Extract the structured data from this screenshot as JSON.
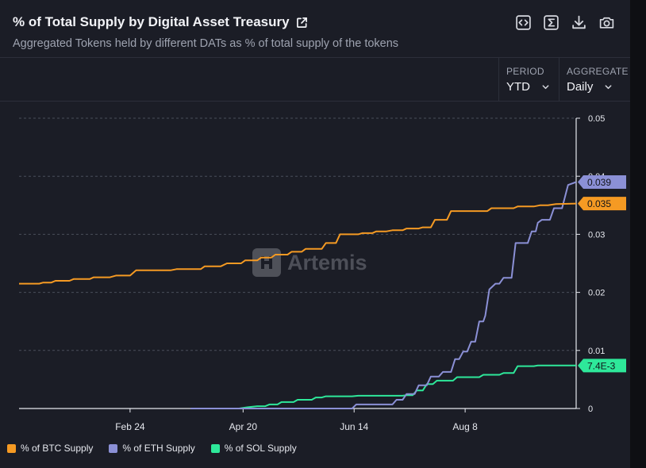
{
  "header": {
    "title": "% of Total Supply by Digital Asset Treasury",
    "subtitle": "Aggregated Tokens held by different DATs as % of total supply of the tokens"
  },
  "toolbar": {
    "embed_icon": "code-icon",
    "sum_icon": "sigma-icon",
    "download_icon": "download-icon",
    "screenshot_icon": "camera-icon"
  },
  "controls": {
    "period": {
      "label": "PERIOD",
      "value": "YTD"
    },
    "aggregate": {
      "label": "AGGREGATE",
      "value": "Daily"
    }
  },
  "watermark": "Artemis",
  "colors": {
    "background": "#1b1d26",
    "btc": "#f59a23",
    "eth": "#8b90d6",
    "sol": "#2ee89a",
    "grid": "#4a4e5a",
    "text": "#e6e8ee"
  },
  "chart_data": {
    "type": "line",
    "title": "% of Total Supply by Digital Asset Treasury",
    "xlabel": "",
    "ylabel": "",
    "x_ticks": [
      "Feb 24",
      "Apr 20",
      "Jun 14",
      "Aug 8"
    ],
    "x_tick_day": [
      55,
      111,
      166,
      221
    ],
    "y_ticks": [
      "0",
      "0.01",
      "0.02",
      "0.03",
      "0.04",
      "0.05"
    ],
    "ylim": [
      0,
      0.05
    ],
    "x_range_days": [
      0,
      276
    ],
    "grid": "horizontal-dashed",
    "legend_position": "bottom-left",
    "series": [
      {
        "name": "% of BTC Supply",
        "color": "#f59a23",
        "last_label": "0.035",
        "points": [
          [
            0,
            0.0215
          ],
          [
            10,
            0.0215
          ],
          [
            12,
            0.0217
          ],
          [
            16,
            0.0217
          ],
          [
            18,
            0.022
          ],
          [
            25,
            0.022
          ],
          [
            27,
            0.0223
          ],
          [
            35,
            0.0223
          ],
          [
            37,
            0.0226
          ],
          [
            45,
            0.0226
          ],
          [
            48,
            0.0229
          ],
          [
            55,
            0.0229
          ],
          [
            58,
            0.0238
          ],
          [
            75,
            0.0238
          ],
          [
            78,
            0.024
          ],
          [
            90,
            0.024
          ],
          [
            92,
            0.0245
          ],
          [
            100,
            0.0245
          ],
          [
            103,
            0.025
          ],
          [
            110,
            0.025
          ],
          [
            112,
            0.0255
          ],
          [
            118,
            0.0255
          ],
          [
            120,
            0.026
          ],
          [
            125,
            0.026
          ],
          [
            127,
            0.0265
          ],
          [
            133,
            0.0265
          ],
          [
            135,
            0.027
          ],
          [
            140,
            0.027
          ],
          [
            142,
            0.0275
          ],
          [
            150,
            0.0275
          ],
          [
            152,
            0.0285
          ],
          [
            157,
            0.0285
          ],
          [
            159,
            0.03
          ],
          [
            168,
            0.03
          ],
          [
            170,
            0.0302
          ],
          [
            175,
            0.0302
          ],
          [
            177,
            0.0305
          ],
          [
            182,
            0.0305
          ],
          [
            185,
            0.0307
          ],
          [
            190,
            0.0307
          ],
          [
            192,
            0.031
          ],
          [
            198,
            0.031
          ],
          [
            200,
            0.0312
          ],
          [
            204,
            0.0312
          ],
          [
            206,
            0.0325
          ],
          [
            212,
            0.0325
          ],
          [
            214,
            0.034
          ],
          [
            232,
            0.034
          ],
          [
            234,
            0.0345
          ],
          [
            245,
            0.0345
          ],
          [
            247,
            0.0348
          ],
          [
            255,
            0.0348
          ],
          [
            258,
            0.035
          ],
          [
            262,
            0.035
          ],
          [
            266,
            0.0352
          ],
          [
            276,
            0.0353
          ]
        ]
      },
      {
        "name": "% of ETH Supply",
        "color": "#8b90d6",
        "last_label": "0.039",
        "points": [
          [
            85,
            0
          ],
          [
            165,
            0
          ],
          [
            167,
            0.0007
          ],
          [
            185,
            0.0007
          ],
          [
            187,
            0.0015
          ],
          [
            190,
            0.0015
          ],
          [
            192,
            0.0025
          ],
          [
            196,
            0.0025
          ],
          [
            198,
            0.004
          ],
          [
            202,
            0.004
          ],
          [
            204,
            0.0055
          ],
          [
            208,
            0.0055
          ],
          [
            210,
            0.0063
          ],
          [
            214,
            0.0063
          ],
          [
            216,
            0.0085
          ],
          [
            218,
            0.0085
          ],
          [
            220,
            0.0098
          ],
          [
            222,
            0.0098
          ],
          [
            224,
            0.0115
          ],
          [
            226,
            0.0115
          ],
          [
            228,
            0.015
          ],
          [
            230,
            0.015
          ],
          [
            231,
            0.016
          ],
          [
            233,
            0.0205
          ],
          [
            236,
            0.0215
          ],
          [
            238,
            0.0215
          ],
          [
            240,
            0.0225
          ],
          [
            244,
            0.0225
          ],
          [
            246,
            0.0285
          ],
          [
            252,
            0.0285
          ],
          [
            254,
            0.0305
          ],
          [
            256,
            0.0305
          ],
          [
            257,
            0.032
          ],
          [
            259,
            0.0325
          ],
          [
            263,
            0.0325
          ],
          [
            265,
            0.0345
          ],
          [
            269,
            0.0345
          ],
          [
            272,
            0.0385
          ],
          [
            276,
            0.039
          ]
        ]
      },
      {
        "name": "% of SOL Supply",
        "color": "#2ee89a",
        "last_label": "7.4E-3",
        "points": [
          [
            109,
            0
          ],
          [
            113,
            0.0002
          ],
          [
            118,
            0.0004
          ],
          [
            122,
            0.0004
          ],
          [
            124,
            0.0007
          ],
          [
            128,
            0.0007
          ],
          [
            130,
            0.0011
          ],
          [
            136,
            0.0011
          ],
          [
            138,
            0.0015
          ],
          [
            145,
            0.0015
          ],
          [
            147,
            0.0019
          ],
          [
            150,
            0.0019
          ],
          [
            152,
            0.0021
          ],
          [
            165,
            0.0021
          ],
          [
            168,
            0.0022
          ],
          [
            190,
            0.0022
          ],
          [
            192,
            0.0023
          ],
          [
            195,
            0.0023
          ],
          [
            197,
            0.0031
          ],
          [
            200,
            0.0031
          ],
          [
            202,
            0.0042
          ],
          [
            205,
            0.0042
          ],
          [
            207,
            0.0048
          ],
          [
            215,
            0.0048
          ],
          [
            217,
            0.0054
          ],
          [
            228,
            0.0054
          ],
          [
            230,
            0.0058
          ],
          [
            238,
            0.0058
          ],
          [
            240,
            0.0061
          ],
          [
            245,
            0.0061
          ],
          [
            247,
            0.0073
          ],
          [
            255,
            0.0073
          ],
          [
            257,
            0.0074
          ],
          [
            276,
            0.0074
          ]
        ]
      }
    ]
  }
}
